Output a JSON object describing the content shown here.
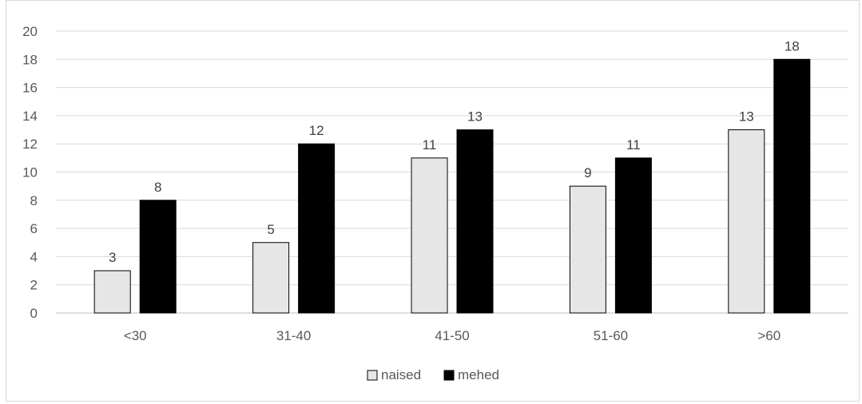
{
  "chart_data": {
    "type": "bar",
    "categories": [
      "<30",
      "31-40",
      "41-50",
      "51-60",
      ">60"
    ],
    "series": [
      {
        "name": "naised",
        "values": [
          3,
          5,
          11,
          9,
          13
        ],
        "color": "#e7e6e6"
      },
      {
        "name": "mehed",
        "values": [
          8,
          12,
          13,
          11,
          18
        ],
        "color": "#000000"
      }
    ],
    "title": "",
    "xlabel": "",
    "ylabel": "",
    "ylim": [
      0,
      20
    ],
    "yticks": [
      0,
      2,
      4,
      6,
      8,
      10,
      12,
      14,
      16,
      18,
      20
    ],
    "grid": true,
    "legend": "bottom",
    "data_labels": true
  }
}
